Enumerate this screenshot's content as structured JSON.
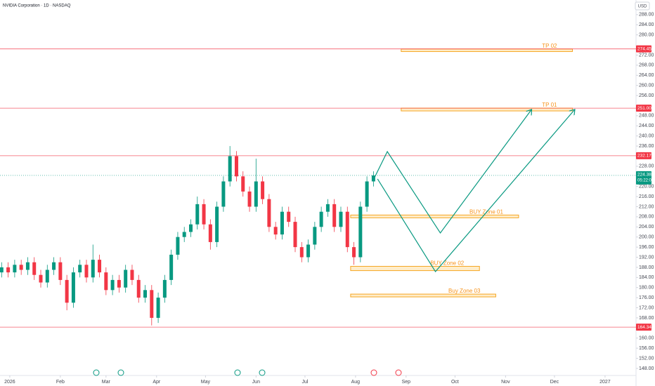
{
  "chart_data": {
    "type": "candlestick",
    "title": "NVIDIA Corporation · 1D · NASDAQ",
    "currency": "USD",
    "up_color": "#089981",
    "down_color": "#f23645",
    "x": [
      -5,
      -1,
      3,
      7,
      11,
      15,
      19,
      23,
      27,
      31,
      35,
      39,
      43,
      47,
      51,
      55,
      59,
      63,
      67,
      71,
      75,
      79,
      83,
      87,
      91,
      95,
      99,
      103,
      107,
      111,
      115,
      119,
      123,
      127,
      131,
      135,
      139,
      143,
      147,
      151,
      155,
      159,
      163,
      167,
      171,
      175,
      179,
      183,
      187,
      191,
      195,
      199,
      203,
      207,
      211,
      215,
      219,
      223
    ],
    "open": [
      186,
      188,
      186,
      189,
      187,
      190,
      185,
      182,
      187,
      190,
      183,
      174,
      186,
      189,
      184,
      191,
      186,
      179,
      183,
      180,
      187,
      183,
      176,
      179,
      168,
      176,
      183,
      193,
      200,
      202,
      205,
      213,
      205,
      198,
      212,
      222,
      232,
      224,
      218,
      212,
      222,
      215,
      204,
      201,
      210,
      206,
      196,
      192,
      197,
      204,
      210,
      213,
      204,
      210,
      196,
      192,
      212,
      222
    ],
    "high": [
      190,
      190,
      191,
      191,
      192,
      192,
      187,
      189,
      192,
      192,
      185,
      188,
      191,
      191,
      197,
      193,
      188,
      185,
      185,
      189,
      189,
      185,
      181,
      181,
      178,
      185,
      195,
      202,
      204,
      207,
      216,
      215,
      207,
      214,
      224,
      236,
      234,
      226,
      220,
      231,
      224,
      217,
      206,
      212,
      212,
      208,
      198,
      199,
      206,
      212,
      215,
      215,
      212,
      212,
      198,
      214,
      224,
      226
    ],
    "low": [
      184,
      184,
      184,
      185,
      185,
      183,
      180,
      180,
      185,
      181,
      171,
      172,
      184,
      182,
      182,
      184,
      177,
      177,
      178,
      178,
      181,
      174,
      174,
      165,
      166,
      174,
      181,
      191,
      198,
      200,
      203,
      203,
      195,
      196,
      210,
      220,
      222,
      216,
      210,
      210,
      213,
      202,
      199,
      199,
      204,
      194,
      190,
      190,
      195,
      202,
      208,
      202,
      202,
      194,
      189,
      190,
      210,
      220
    ],
    "close": [
      188,
      186,
      189,
      187,
      190,
      185,
      182,
      187,
      190,
      183,
      174,
      186,
      189,
      184,
      191,
      186,
      179,
      183,
      180,
      187,
      183,
      176,
      179,
      168,
      176,
      183,
      193,
      200,
      202,
      205,
      213,
      205,
      198,
      212,
      222,
      232,
      224,
      218,
      212,
      222,
      215,
      204,
      201,
      210,
      206,
      196,
      192,
      197,
      204,
      210,
      213,
      204,
      210,
      196,
      192,
      212,
      222,
      224.38
    ],
    "xlim": [
      -6,
      384
    ],
    "ylim": [
      145.2,
      293.8
    ],
    "xticks": [
      {
        "value": 0,
        "label": "2026"
      },
      {
        "value": 31,
        "label": "Feb"
      },
      {
        "value": 59,
        "label": "Mar"
      },
      {
        "value": 90,
        "label": "Apr"
      },
      {
        "value": 120,
        "label": "May"
      },
      {
        "value": 151,
        "label": "Jun"
      },
      {
        "value": 181,
        "label": "Jul"
      },
      {
        "value": 212,
        "label": "Aug"
      },
      {
        "value": 243,
        "label": "Sep"
      },
      {
        "value": 273,
        "label": "Oct"
      },
      {
        "value": 304,
        "label": "Nov"
      },
      {
        "value": 334,
        "label": "Dec"
      },
      {
        "value": 365,
        "label": "2027"
      }
    ],
    "yticks": [
      {
        "value": 148,
        "label": "148.00"
      },
      {
        "value": 152,
        "label": "152.00"
      },
      {
        "value": 156,
        "label": "156.00"
      },
      {
        "value": 160,
        "label": "160.00"
      },
      {
        "value": 168,
        "label": "168.00"
      },
      {
        "value": 172,
        "label": "172.00"
      },
      {
        "value": 176,
        "label": "176.00"
      },
      {
        "value": 180,
        "label": "180.00"
      },
      {
        "value": 184,
        "label": "184.00"
      },
      {
        "value": 188,
        "label": "188.00"
      },
      {
        "value": 192,
        "label": "192.00"
      },
      {
        "value": 196,
        "label": "196.00"
      },
      {
        "value": 200,
        "label": "200.00"
      },
      {
        "value": 204,
        "label": "204.00"
      },
      {
        "value": 208,
        "label": "208.00"
      },
      {
        "value": 212,
        "label": "212.00"
      },
      {
        "value": 216,
        "label": "216.00"
      },
      {
        "value": 220,
        "label": "220.00"
      },
      {
        "value": 228,
        "label": "228.00"
      },
      {
        "value": 236,
        "label": "236.00"
      },
      {
        "value": 240,
        "label": "240.00"
      },
      {
        "value": 244,
        "label": "244.00"
      },
      {
        "value": 248,
        "label": "248.00"
      },
      {
        "value": 256,
        "label": "256.00"
      },
      {
        "value": 260,
        "label": "260.00"
      },
      {
        "value": 264,
        "label": "264.00"
      },
      {
        "value": 268,
        "label": "268.00"
      },
      {
        "value": 272,
        "label": "272.00"
      },
      {
        "value": 280,
        "label": "280.00"
      },
      {
        "value": 284,
        "label": "284.00"
      },
      {
        "value": 288,
        "label": "288.00"
      }
    ],
    "levels": [
      274.45,
      {
        "value": 251,
        "label": "251.00"
      },
      232.17,
      164.34
    ],
    "last_price": {
      "value": 224.38,
      "countdown": "05:22:01"
    },
    "zones": [
      {
        "label": "TP 02",
        "x": [
          240,
          345
        ],
        "y": [
          273.4,
          274.4
        ]
      },
      {
        "label": "TP 01",
        "x": [
          240,
          345
        ],
        "y": [
          249.9,
          251.0
        ]
      },
      {
        "label": "BUY Zone 01",
        "x": [
          209,
          312
        ],
        "y": [
          207.6,
          208.7
        ]
      },
      {
        "label": "BUY Zone 02",
        "x": [
          209,
          288
        ],
        "y": [
          186.7,
          188.4
        ]
      },
      {
        "label": "Buy Zone 03",
        "x": [
          209,
          298
        ],
        "y": [
          176.3,
          177.4
        ]
      }
    ],
    "paths": [
      {
        "x": [
          223.7,
          231.5,
          264,
          320
        ],
        "y": [
          223.6,
          233.8,
          201.6,
          250.5
        ]
      },
      {
        "x": [
          225.5,
          261,
          346.5
        ],
        "y": [
          223.0,
          186.3,
          250.5
        ]
      }
    ]
  }
}
